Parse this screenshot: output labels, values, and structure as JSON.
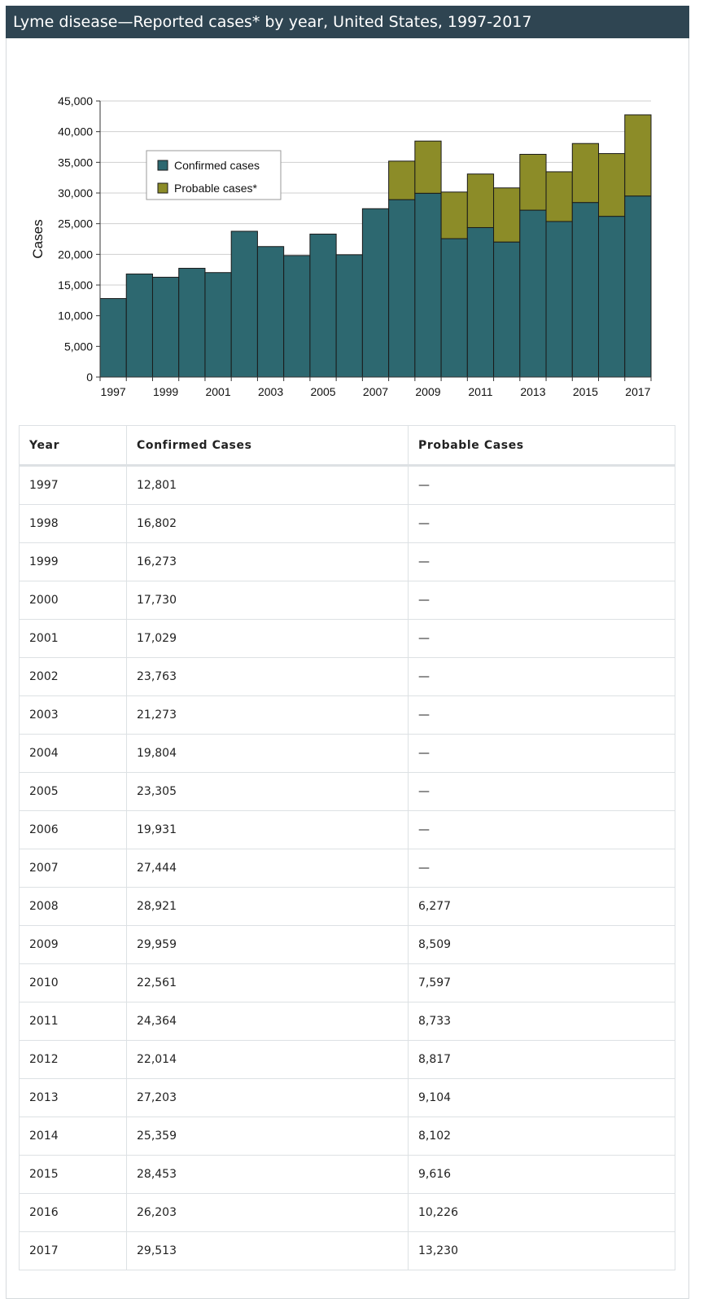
{
  "page": {
    "title": "Lyme disease—Reported cases* by year, United States, 1997-2017"
  },
  "colors": {
    "header_bg": "#2f4552",
    "confirmed": "#2d6870",
    "probable": "#8c8c28"
  },
  "chart_data": {
    "type": "bar",
    "stacked": true,
    "categories": [
      "1997",
      "1998",
      "1999",
      "2000",
      "2001",
      "2002",
      "2003",
      "2004",
      "2005",
      "2006",
      "2007",
      "2008",
      "2009",
      "2010",
      "2011",
      "2012",
      "2013",
      "2014",
      "2015",
      "2016",
      "2017"
    ],
    "series": [
      {
        "name": "Confirmed cases",
        "values": [
          12801,
          16802,
          16273,
          17730,
          17029,
          23763,
          21273,
          19804,
          23305,
          19931,
          27444,
          28921,
          29959,
          22561,
          24364,
          22014,
          27203,
          25359,
          28453,
          26203,
          29513
        ]
      },
      {
        "name": "Probable cases*",
        "values": [
          0,
          0,
          0,
          0,
          0,
          0,
          0,
          0,
          0,
          0,
          0,
          6277,
          8509,
          7597,
          8733,
          8817,
          9104,
          8102,
          9616,
          10226,
          13230
        ]
      }
    ],
    "ylabel": "Cases",
    "ylim": [
      0,
      45000
    ],
    "yticks": [
      "0",
      "5,000",
      "10,000",
      "15,000",
      "20,000",
      "25,000",
      "30,000",
      "35,000",
      "40,000",
      "45,000"
    ],
    "xtick_labels": [
      "1997",
      "1999",
      "2001",
      "2003",
      "2005",
      "2007",
      "2009",
      "2011",
      "2013",
      "2015",
      "2017"
    ],
    "grid": true,
    "legend_position": "top-left"
  },
  "table": {
    "headers": [
      "Year",
      "Confirmed Cases",
      "Probable Cases"
    ],
    "rows": [
      [
        "1997",
        "12,801",
        "—"
      ],
      [
        "1998",
        "16,802",
        "—"
      ],
      [
        "1999",
        "16,273",
        "—"
      ],
      [
        "2000",
        "17,730",
        "—"
      ],
      [
        "2001",
        "17,029",
        "—"
      ],
      [
        "2002",
        "23,763",
        "—"
      ],
      [
        "2003",
        "21,273",
        "—"
      ],
      [
        "2004",
        "19,804",
        "—"
      ],
      [
        "2005",
        "23,305",
        "—"
      ],
      [
        "2006",
        "19,931",
        "—"
      ],
      [
        "2007",
        "27,444",
        "—"
      ],
      [
        "2008",
        "28,921",
        "6,277"
      ],
      [
        "2009",
        "29,959",
        "8,509"
      ],
      [
        "2010",
        "22,561",
        "7,597"
      ],
      [
        "2011",
        "24,364",
        "8,733"
      ],
      [
        "2012",
        "22,014",
        "8,817"
      ],
      [
        "2013",
        "27,203",
        "9,104"
      ],
      [
        "2014",
        "25,359",
        "8,102"
      ],
      [
        "2015",
        "28,453",
        "9,616"
      ],
      [
        "2016",
        "26,203",
        "10,226"
      ],
      [
        "2017",
        "29,513",
        "13,230"
      ]
    ]
  }
}
